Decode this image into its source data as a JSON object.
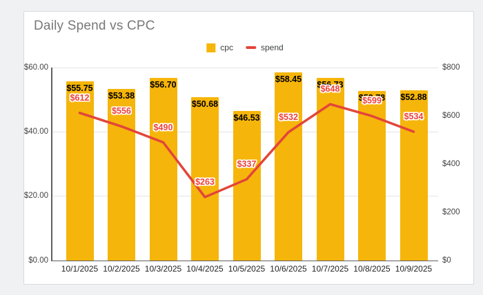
{
  "legend": [
    {
      "label": "cpc"
    },
    {
      "label": "spend"
    }
  ],
  "chart_data": {
    "type": "bar",
    "subtype": "combo-bar-line-dual-axis",
    "title": "Daily Spend vs CPC",
    "categories": [
      "10/1/2025",
      "10/2/2025",
      "10/3/2025",
      "10/4/2025",
      "10/5/2025",
      "10/6/2025",
      "10/7/2025",
      "10/8/2025",
      "10/9/2025"
    ],
    "series": [
      {
        "name": "cpc",
        "type": "bar",
        "axis": "left",
        "color": "#F6B50A",
        "values": [
          55.75,
          53.38,
          56.7,
          50.68,
          46.53,
          58.45,
          56.73,
          52.78,
          52.88
        ],
        "labels": [
          "$55.75",
          "$53.38",
          "$56.70",
          "$50.68",
          "$46.53",
          "$58.45",
          "$56.73",
          "$52.78",
          "$52.88"
        ],
        "label_color": "#000000"
      },
      {
        "name": "spend",
        "type": "line",
        "axis": "right",
        "color": "#E2453A",
        "values": [
          612,
          556,
          490,
          263,
          337,
          532,
          648,
          599,
          534
        ],
        "labels": [
          "$612",
          "$556",
          "$490",
          "$263",
          "$337",
          "$532",
          "$648",
          "$599",
          "$534"
        ],
        "label_color": "#EE4037"
      }
    ],
    "left_axis": {
      "ticks": [
        "$60.00",
        "$40.00",
        "$20.00",
        "$0.00"
      ],
      "tick_values": [
        60,
        40,
        20,
        0
      ],
      "min": 0,
      "max": 60
    },
    "right_axis": {
      "ticks": [
        "$800",
        "$600",
        "$400",
        "$200",
        "$0"
      ],
      "tick_values": [
        800,
        600,
        400,
        200,
        0
      ],
      "min": 0,
      "max": 800
    },
    "grid": "horizontal",
    "legend_position": "top-center"
  }
}
